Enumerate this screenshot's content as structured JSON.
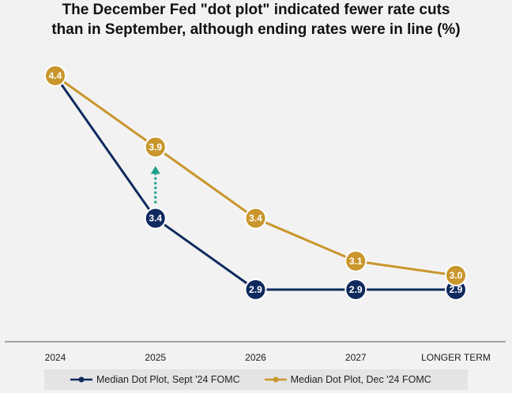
{
  "title_lines": [
    "The December Fed \"dot plot\" indicated fewer rate cuts",
    "than in September, although ending rates were in line (%)"
  ],
  "chart_data": {
    "type": "line",
    "title": "The December Fed \"dot plot\" indicated fewer rate cuts than in September, although ending rates were in line (%)",
    "categories": [
      "2024",
      "2025",
      "2026",
      "2027",
      "LONGER TERM"
    ],
    "series": [
      {
        "name": "Median Dot Plot, Sept '24 FOMC",
        "color": "#0f2a5e",
        "values": [
          4.4,
          3.4,
          2.9,
          2.9,
          2.9
        ],
        "labels": [
          "4.4",
          "3.4",
          "2.9",
          "2.9",
          "2.9"
        ]
      },
      {
        "name": "Median Dot Plot, Dec '24 FOMC",
        "color": "#c9962b",
        "values": [
          4.4,
          3.9,
          3.4,
          3.1,
          3.0
        ],
        "labels": [
          "4.4",
          "3.9",
          "3.4",
          "3.1",
          "3.0"
        ]
      }
    ],
    "annotation": {
      "type": "dotted-arrow",
      "category": "2025",
      "from": 3.4,
      "to": 3.9,
      "color": "#1aa08a"
    },
    "ylim": [
      2.5,
      4.7
    ],
    "grid": false,
    "legend_position": "bottom"
  }
}
